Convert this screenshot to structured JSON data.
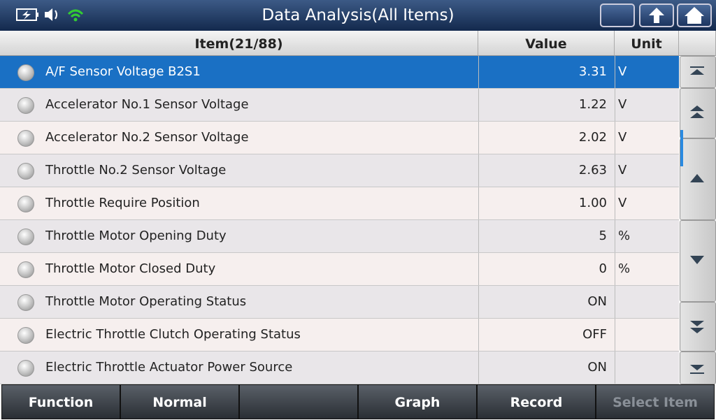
{
  "header": {
    "title": "Data Analysis(All Items)"
  },
  "table": {
    "columns": [
      "Item(21/88)",
      "Value",
      "Unit"
    ],
    "rows": [
      {
        "item": "A/F Sensor Voltage B2S1",
        "value": "3.31",
        "unit": "V"
      },
      {
        "item": "Accelerator No.1 Sensor Voltage",
        "value": "1.22",
        "unit": "V"
      },
      {
        "item": "Accelerator No.2 Sensor Voltage",
        "value": "2.02",
        "unit": "V"
      },
      {
        "item": "Throttle No.2 Sensor Voltage",
        "value": "2.63",
        "unit": "V"
      },
      {
        "item": "Throttle Require Position",
        "value": "1.00",
        "unit": "V"
      },
      {
        "item": "Throttle Motor Opening Duty",
        "value": "5",
        "unit": "%"
      },
      {
        "item": "Throttle Motor Closed Duty",
        "value": "0",
        "unit": "%"
      },
      {
        "item": "Throttle Motor Operating Status",
        "value": "ON"
      },
      {
        "item": "Electric Throttle Clutch Operating Status",
        "value": "OFF"
      },
      {
        "item": "Electric Throttle Actuator Power Source",
        "value": "ON"
      }
    ]
  },
  "footer": {
    "buttons": [
      "Function",
      "Normal",
      "Graph",
      "Record",
      "Select Item"
    ]
  }
}
